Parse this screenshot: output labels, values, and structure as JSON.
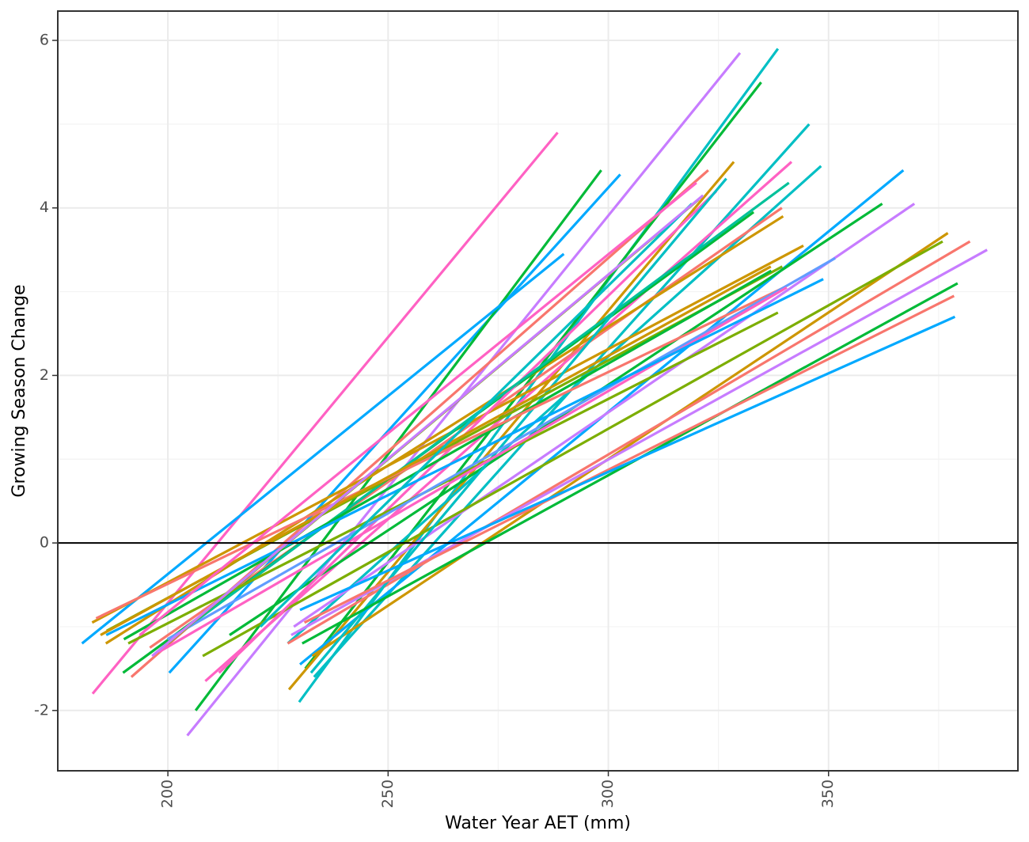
{
  "chart_data": {
    "type": "line",
    "title": "",
    "xlabel": "Water Year AET (mm)",
    "ylabel": "Growing Season Change",
    "xlim": [
      175,
      393
    ],
    "ylim": [
      -2.72,
      6.35
    ],
    "x_ticks": [
      200,
      250,
      300,
      350
    ],
    "x_tick_labels": [
      "200",
      "250",
      "300",
      "350"
    ],
    "y_ticks": [
      -2,
      0,
      2,
      4,
      6
    ],
    "y_tick_labels": [
      "-2",
      "0",
      "2",
      "4",
      "6"
    ],
    "x_tick_label_rotation": "vertical",
    "grid": true,
    "legend": "none",
    "reference_line": {
      "y": 0,
      "color": "#000000"
    },
    "series": [
      {
        "color": "#FF61C3",
        "x": [
          182.9,
          288.5
        ],
        "y": [
          -1.8,
          4.9
        ]
      },
      {
        "color": "#00A9FF",
        "x": [
          200.3,
          302.7
        ],
        "y": [
          -1.55,
          4.4
        ]
      },
      {
        "color": "#00BA38",
        "x": [
          206.3,
          298.4
        ],
        "y": [
          -2.0,
          4.45
        ]
      },
      {
        "color": "#00A9FF",
        "x": [
          180.5,
          289.9
        ],
        "y": [
          -1.2,
          3.45
        ]
      },
      {
        "color": "#C77CFF",
        "x": [
          204.4,
          329.9
        ],
        "y": [
          -2.3,
          5.85
        ]
      },
      {
        "color": "#00BFC4",
        "x": [
          229.8,
          338.5
        ],
        "y": [
          -1.9,
          5.9
        ]
      },
      {
        "color": "#00BA38",
        "x": [
          231.2,
          334.7
        ],
        "y": [
          -1.5,
          5.5
        ]
      },
      {
        "color": "#00BFC4",
        "x": [
          233.2,
          345.6
        ],
        "y": [
          -1.6,
          5.0
        ]
      },
      {
        "color": "#F8766D",
        "x": [
          191.7,
          322.7
        ],
        "y": [
          -1.6,
          4.45
        ]
      },
      {
        "color": "#CD9600",
        "x": [
          227.5,
          328.5
        ],
        "y": [
          -1.75,
          4.55
        ]
      },
      {
        "color": "#FF61C3",
        "x": [
          208.5,
          341.6
        ],
        "y": [
          -1.65,
          4.55
        ]
      },
      {
        "color": "#00BFC4",
        "x": [
          227.2,
          348.3
        ],
        "y": [
          -1.2,
          4.5
        ]
      },
      {
        "color": "#00A9FF",
        "x": [
          230.0,
          367.0
        ],
        "y": [
          -1.45,
          4.45
        ]
      },
      {
        "color": "#00BA38",
        "x": [
          214.0,
          362.2
        ],
        "y": [
          -1.1,
          4.05
        ]
      },
      {
        "color": "#C77CFF",
        "x": [
          228.6,
          369.5
        ],
        "y": [
          -1.0,
          4.05
        ]
      },
      {
        "color": "#F8766D",
        "x": [
          195.9,
          339.4
        ],
        "y": [
          -1.25,
          4.0
        ]
      },
      {
        "color": "#CD9600",
        "x": [
          185.9,
          339.7
        ],
        "y": [
          -1.2,
          3.9
        ]
      },
      {
        "color": "#CD9600",
        "x": [
          232.8,
          377.1
        ],
        "y": [
          -1.35,
          3.7
        ]
      },
      {
        "color": "#7CAE00",
        "x": [
          207.9,
          375.9
        ],
        "y": [
          -1.35,
          3.6
        ]
      },
      {
        "color": "#F8766D",
        "x": [
          227.2,
          382.1
        ],
        "y": [
          -1.2,
          3.6
        ]
      },
      {
        "color": "#C77CFF",
        "x": [
          228.0,
          386.0
        ],
        "y": [
          -1.1,
          3.5
        ]
      },
      {
        "color": "#CD9600",
        "x": [
          182.8,
          344.3
        ],
        "y": [
          -0.95,
          3.55
        ]
      },
      {
        "color": "#00BA38",
        "x": [
          189.8,
          333.0
        ],
        "y": [
          -1.55,
          3.95
        ]
      },
      {
        "color": "#FF61C3",
        "x": [
          211.6,
          324.5
        ],
        "y": [
          -1.55,
          4.2
        ]
      },
      {
        "color": "#00BFC4",
        "x": [
          232.5,
          326.8
        ],
        "y": [
          -1.55,
          4.35
        ]
      },
      {
        "color": "#00C19A",
        "x": [
          202.0,
          341.0
        ],
        "y": [
          -1.1,
          4.3
        ]
      },
      {
        "color": "#7CAE00",
        "x": [
          186.1,
          339.5
        ],
        "y": [
          -1.05,
          3.3
        ]
      },
      {
        "color": "#00BA38",
        "x": [
          190.0,
          337.0
        ],
        "y": [
          -1.15,
          3.25
        ]
      },
      {
        "color": "#F8766D",
        "x": [
          183.7,
          339.9
        ],
        "y": [
          -0.9,
          3.05
        ]
      },
      {
        "color": "#7CAE00",
        "x": [
          191.0,
          338.5
        ],
        "y": [
          -1.2,
          2.75
        ]
      },
      {
        "color": "#CD9600",
        "x": [
          184.7,
          336.9
        ],
        "y": [
          -1.1,
          3.3
        ]
      },
      {
        "color": "#619CFF",
        "x": [
          199.9,
          351.5
        ],
        "y": [
          -1.15,
          3.4
        ]
      },
      {
        "color": "#FF61C3",
        "x": [
          198.0,
          340.5
        ],
        "y": [
          -1.3,
          3.05
        ]
      },
      {
        "color": "#00A9FF",
        "x": [
          186.0,
          348.8
        ],
        "y": [
          -1.1,
          3.15
        ]
      },
      {
        "color": "#00BA38",
        "x": [
          230.5,
          379.3
        ],
        "y": [
          -1.2,
          3.1
        ]
      },
      {
        "color": "#F8766D",
        "x": [
          231.0,
          378.5
        ],
        "y": [
          -0.95,
          2.95
        ]
      },
      {
        "color": "#00A9FF",
        "x": [
          230.0,
          378.7
        ],
        "y": [
          -0.8,
          2.7
        ]
      },
      {
        "color": "#FF61C3",
        "x": [
          193.6,
          320.0
        ],
        "y": [
          -1.1,
          4.3
        ]
      },
      {
        "color": "#7CAE00",
        "x": [
          200.0,
          320.5
        ],
        "y": [
          -1.2,
          4.1
        ]
      },
      {
        "color": "#00BFC4",
        "x": [
          221.0,
          319.0
        ],
        "y": [
          -1.0,
          4.05
        ]
      },
      {
        "color": "#C77CFF",
        "x": [
          196.4,
          321.5
        ],
        "y": [
          -1.35,
          4.15
        ]
      }
    ]
  }
}
